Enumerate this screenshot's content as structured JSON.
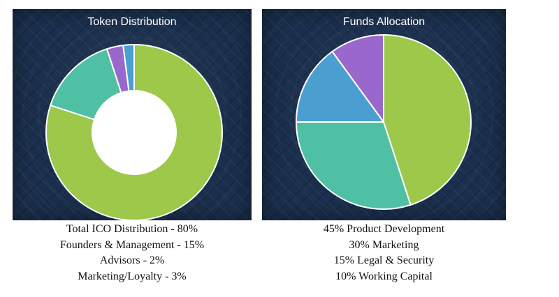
{
  "charts": {
    "left": {
      "title": "Token Distribution",
      "legend": [
        "Total ICO Distribution - 80%",
        "Founders & Management - 15%",
        "Advisors - 2%",
        "Marketing/Loyalty - 3%"
      ]
    },
    "right": {
      "title": "Funds Allocation",
      "legend": [
        "45% Product Development",
        "30% Marketing",
        "15% Legal & Security",
        "10% Working Capital"
      ]
    }
  },
  "chart_data": [
    {
      "type": "pie",
      "variant": "donut",
      "title": "Token Distribution",
      "slices": [
        {
          "label": "Total ICO Distribution",
          "value": 80,
          "color": "#9dc84a"
        },
        {
          "label": "Founders & Management",
          "value": 15,
          "color": "#4fc0a3"
        },
        {
          "label": "Marketing/Loyalty",
          "value": 3,
          "color": "#9a68cc"
        },
        {
          "label": "Advisors",
          "value": 2,
          "color": "#4a9fd0"
        }
      ]
    },
    {
      "type": "pie",
      "title": "Funds Allocation",
      "slices": [
        {
          "label": "Product Development",
          "value": 45,
          "color": "#9dc84a"
        },
        {
          "label": "Marketing",
          "value": 30,
          "color": "#4fc0a3"
        },
        {
          "label": "Legal & Security",
          "value": 15,
          "color": "#4a9fd0"
        },
        {
          "label": "Working Capital",
          "value": 10,
          "color": "#9a68cc"
        }
      ]
    }
  ]
}
